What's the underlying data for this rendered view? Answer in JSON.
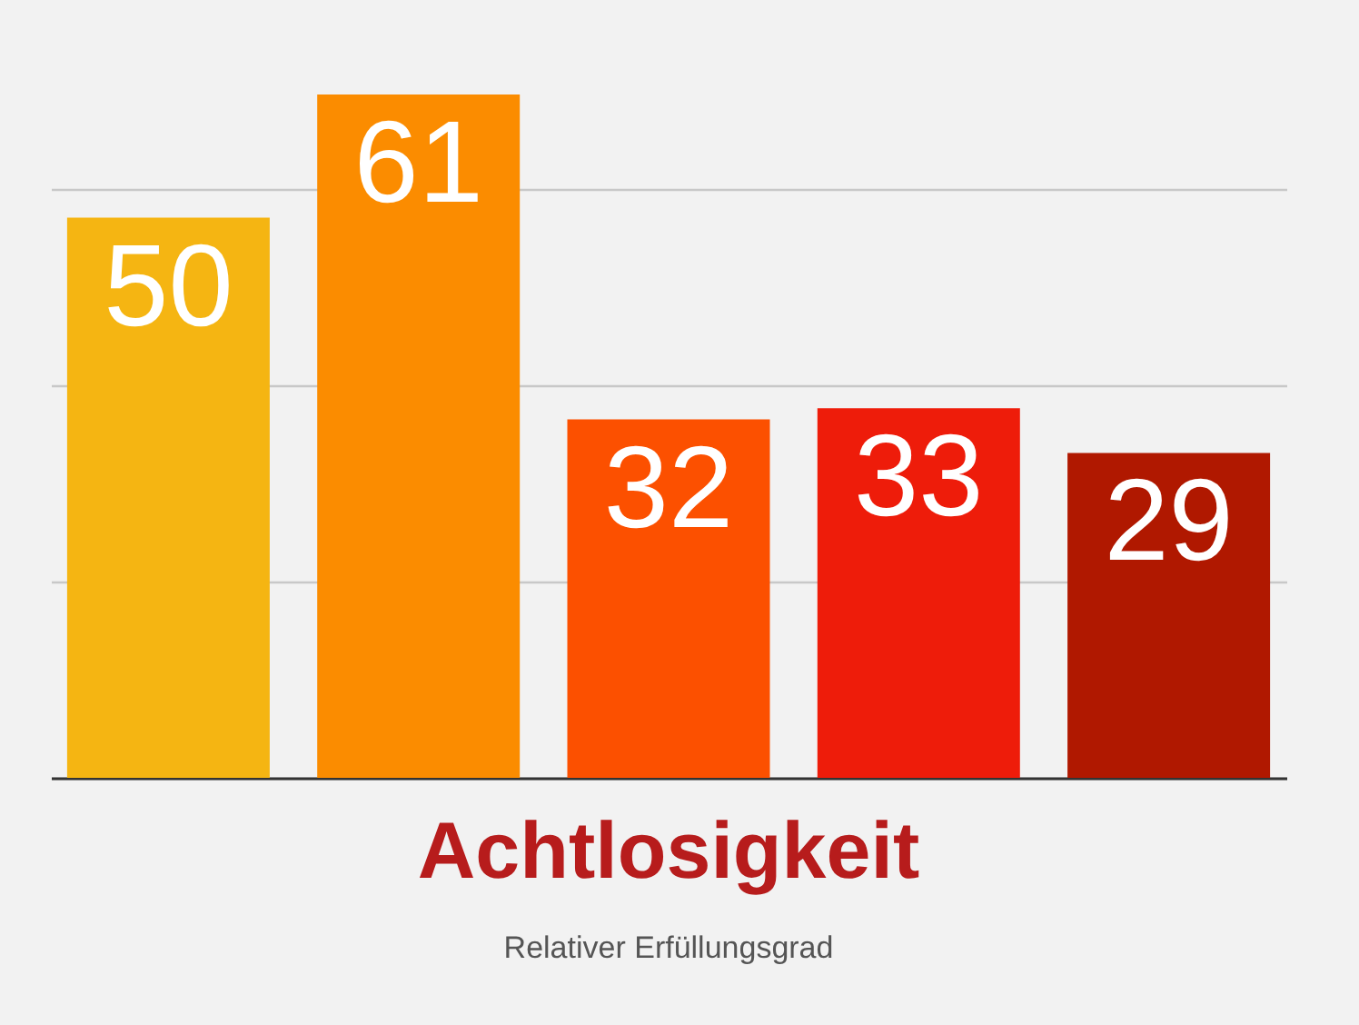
{
  "chart_data": {
    "type": "bar",
    "title": "Achtlosigkeit",
    "subtitle": "Relativer Erfüllungsgrad",
    "categories": [
      null,
      null,
      null,
      null,
      null
    ],
    "values": [
      50,
      61,
      32,
      33,
      29
    ],
    "colors": [
      "#f5b512",
      "#fb8c00",
      "#fc5000",
      "#ee1c0a",
      "#b01800"
    ],
    "yticks": [
      0,
      17.5,
      35,
      52.5
    ],
    "grid": "y",
    "tick_labels": false,
    "data_labels": true
  }
}
